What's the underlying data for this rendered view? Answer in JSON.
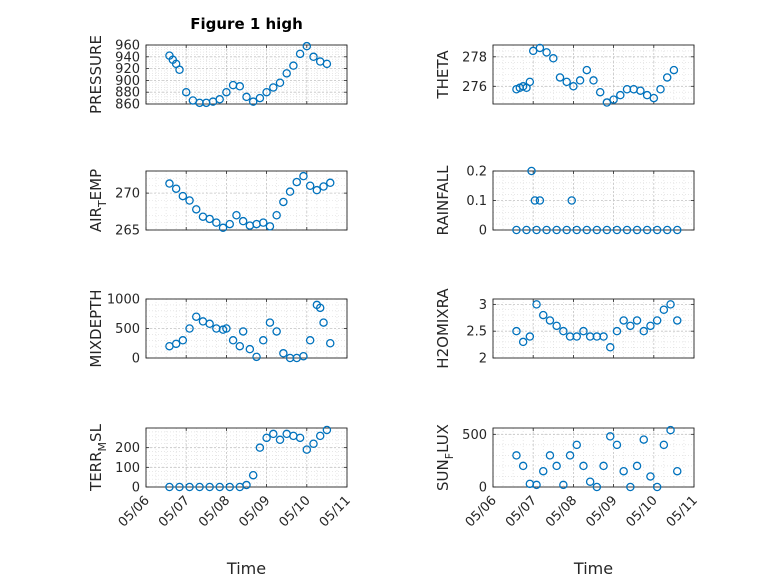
{
  "chart_data": {
    "title": "Figure 1 high",
    "marker": "open-circle",
    "color": "#0072BD",
    "grid": "major+minor",
    "panels": [
      {
        "ylabel": "PRESSURE",
        "ylabel_sub": "",
        "ylabel_tail": "",
        "ylim": [
          860,
          960
        ],
        "yticks": [
          "860",
          "880",
          "900",
          "920",
          "940",
          "960"
        ],
        "x": [
          "05/06 14:00",
          "05/06 16:00",
          "05/06 18:00",
          "05/06 20:00",
          "05/07 00:00",
          "05/07 04:00",
          "05/07 08:00",
          "05/07 12:00",
          "05/07 16:00",
          "05/07 20:00",
          "05/08 00:00",
          "05/08 04:00",
          "05/08 08:00",
          "05/08 12:00",
          "05/08 16:00",
          "05/08 20:00",
          "05/09 00:00",
          "05/09 04:00",
          "05/09 08:00",
          "05/09 12:00",
          "05/09 16:00",
          "05/09 20:00",
          "05/10 00:00",
          "05/10 04:00",
          "05/10 08:00",
          "05/10 12:00"
        ],
        "y": [
          942,
          935,
          928,
          918,
          880,
          866,
          862,
          862,
          864,
          868,
          880,
          892,
          890,
          872,
          864,
          870,
          880,
          888,
          896,
          912,
          925,
          945,
          958,
          940,
          932,
          928
        ]
      },
      {
        "ylabel": "THETA",
        "ylabel_sub": "",
        "ylabel_tail": "",
        "ylim": [
          274.8,
          278.8
        ],
        "yticks": [
          "276",
          "278"
        ],
        "x": [
          "05/06 14:00",
          "05/06 16:00",
          "05/06 18:00",
          "05/06 20:00",
          "05/06 22:00",
          "05/07 00:00",
          "05/07 04:00",
          "05/07 08:00",
          "05/07 12:00",
          "05/07 16:00",
          "05/07 20:00",
          "05/08 00:00",
          "05/08 04:00",
          "05/08 08:00",
          "05/08 12:00",
          "05/08 16:00",
          "05/08 20:00",
          "05/09 00:00",
          "05/09 04:00",
          "05/09 08:00",
          "05/09 12:00",
          "05/09 16:00",
          "05/09 20:00",
          "05/10 00:00",
          "05/10 04:00",
          "05/10 08:00",
          "05/10 12:00"
        ],
        "y": [
          275.8,
          275.9,
          276.0,
          275.9,
          276.3,
          278.4,
          278.6,
          278.3,
          277.9,
          276.6,
          276.3,
          276.0,
          276.4,
          277.1,
          276.4,
          275.6,
          274.9,
          275.1,
          275.4,
          275.8,
          275.8,
          275.7,
          275.4,
          275.2,
          275.8,
          276.6,
          277.1
        ]
      },
      {
        "ylabel": "AIR",
        "ylabel_sub": "T",
        "ylabel_tail": "EMP",
        "ylim": [
          265,
          273
        ],
        "yticks": [
          "265",
          "270"
        ],
        "x": [
          "05/06 14:00",
          "05/06 18:00",
          "05/06 22:00",
          "05/07 02:00",
          "05/07 06:00",
          "05/07 10:00",
          "05/07 14:00",
          "05/07 18:00",
          "05/07 22:00",
          "05/08 02:00",
          "05/08 06:00",
          "05/08 10:00",
          "05/08 14:00",
          "05/08 18:00",
          "05/08 22:00",
          "05/09 02:00",
          "05/09 06:00",
          "05/09 10:00",
          "05/09 14:00",
          "05/09 18:00",
          "05/09 22:00",
          "05/10 02:00",
          "05/10 06:00",
          "05/10 10:00",
          "05/10 14:00"
        ],
        "y": [
          271.3,
          270.6,
          269.6,
          269.0,
          267.8,
          266.8,
          266.5,
          266.0,
          265.3,
          265.8,
          267.0,
          266.2,
          265.6,
          265.8,
          266.0,
          265.5,
          267.0,
          268.8,
          270.2,
          271.5,
          272.3,
          271.0,
          270.4,
          270.9,
          271.4
        ]
      },
      {
        "ylabel": "RAINFALL",
        "ylabel_sub": "",
        "ylabel_tail": "",
        "ylim": [
          0,
          0.2
        ],
        "yticks": [
          "0",
          "0.1",
          "0.2"
        ],
        "x": [
          "05/06 14:00",
          "05/06 20:00",
          "05/07 02:00",
          "05/07 08:00",
          "05/07 14:00",
          "05/07 20:00",
          "05/08 02:00",
          "05/08 08:00",
          "05/08 14:00",
          "05/08 20:00",
          "05/09 02:00",
          "05/09 08:00",
          "05/09 14:00",
          "05/09 20:00",
          "05/10 02:00",
          "05/10 08:00",
          "05/10 14:00",
          "05/06 23:00",
          "05/07 01:00",
          "05/07 04:00",
          "05/07 23:00"
        ],
        "y": [
          0,
          0,
          0,
          0,
          0,
          0,
          0,
          0,
          0,
          0,
          0,
          0,
          0,
          0,
          0,
          0,
          0,
          0.2,
          0.1,
          0.1,
          0.1
        ]
      },
      {
        "ylabel": "MIXDEPTH",
        "ylabel_sub": "",
        "ylabel_tail": "",
        "ylim": [
          0,
          1000
        ],
        "yticks": [
          "0",
          "500",
          "1000"
        ],
        "x": [
          "05/06 14:00",
          "05/06 18:00",
          "05/06 22:00",
          "05/07 02:00",
          "05/07 06:00",
          "05/07 10:00",
          "05/07 14:00",
          "05/07 18:00",
          "05/07 22:00",
          "05/08 00:00",
          "05/08 04:00",
          "05/08 08:00",
          "05/08 10:00",
          "05/08 14:00",
          "05/08 18:00",
          "05/08 22:00",
          "05/09 02:00",
          "05/09 06:00",
          "05/09 10:00",
          "05/09 14:00",
          "05/09 18:00",
          "05/09 22:00",
          "05/10 02:00",
          "05/10 06:00",
          "05/10 08:00",
          "05/10 10:00",
          "05/10 14:00"
        ],
        "y": [
          200,
          240,
          300,
          500,
          700,
          620,
          580,
          500,
          480,
          500,
          300,
          200,
          450,
          150,
          20,
          300,
          600,
          450,
          80,
          0,
          0,
          30,
          300,
          900,
          850,
          600,
          250
        ]
      },
      {
        "ylabel": "H2OMIXRA",
        "ylabel_sub": "",
        "ylabel_tail": "",
        "ylim": [
          2,
          3.1
        ],
        "yticks": [
          "2",
          "2.5",
          "3"
        ],
        "x": [
          "05/06 14:00",
          "05/06 18:00",
          "05/06 22:00",
          "05/07 02:00",
          "05/07 06:00",
          "05/07 10:00",
          "05/07 14:00",
          "05/07 18:00",
          "05/07 22:00",
          "05/08 02:00",
          "05/08 06:00",
          "05/08 10:00",
          "05/08 14:00",
          "05/08 18:00",
          "05/08 22:00",
          "05/09 02:00",
          "05/09 06:00",
          "05/09 10:00",
          "05/09 14:00",
          "05/09 18:00",
          "05/09 22:00",
          "05/10 02:00",
          "05/10 06:00",
          "05/10 10:00",
          "05/10 14:00"
        ],
        "y": [
          2.5,
          2.3,
          2.4,
          3.0,
          2.8,
          2.7,
          2.6,
          2.5,
          2.4,
          2.4,
          2.5,
          2.4,
          2.4,
          2.4,
          2.2,
          2.5,
          2.7,
          2.6,
          2.7,
          2.5,
          2.6,
          2.7,
          2.9,
          3.0,
          2.7
        ]
      },
      {
        "ylabel": "TERR",
        "ylabel_sub": "M",
        "ylabel_tail": "SL",
        "ylim": [
          0,
          300
        ],
        "yticks": [
          "0",
          "100",
          "200"
        ],
        "x": [
          "05/06 14:00",
          "05/06 20:00",
          "05/07 02:00",
          "05/07 08:00",
          "05/07 14:00",
          "05/07 20:00",
          "05/08 02:00",
          "05/08 08:00",
          "05/08 12:00",
          "05/08 16:00",
          "05/08 20:00",
          "05/09 00:00",
          "05/09 04:00",
          "05/09 08:00",
          "05/09 12:00",
          "05/09 16:00",
          "05/09 20:00",
          "05/10 00:00",
          "05/10 04:00",
          "05/10 08:00",
          "05/10 12:00"
        ],
        "y": [
          0,
          0,
          0,
          0,
          0,
          0,
          0,
          0,
          10,
          60,
          200,
          250,
          270,
          240,
          270,
          260,
          250,
          190,
          220,
          260,
          290
        ]
      },
      {
        "ylabel": "SUN",
        "ylabel_sub": "F",
        "ylabel_tail": "LUX",
        "ylim": [
          0,
          560
        ],
        "yticks": [
          "0",
          "500"
        ],
        "x": [
          "05/06 14:00",
          "05/06 18:00",
          "05/06 22:00",
          "05/07 02:00",
          "05/07 06:00",
          "05/07 10:00",
          "05/07 14:00",
          "05/07 18:00",
          "05/07 22:00",
          "05/08 02:00",
          "05/08 06:00",
          "05/08 10:00",
          "05/08 14:00",
          "05/08 18:00",
          "05/08 22:00",
          "05/09 02:00",
          "05/09 06:00",
          "05/09 10:00",
          "05/09 14:00",
          "05/09 18:00",
          "05/09 22:00",
          "05/10 02:00",
          "05/10 06:00",
          "05/10 10:00",
          "05/10 14:00"
        ],
        "y": [
          300,
          200,
          30,
          20,
          150,
          300,
          200,
          20,
          300,
          400,
          200,
          50,
          0,
          200,
          480,
          400,
          150,
          0,
          200,
          450,
          100,
          0,
          400,
          540,
          150
        ]
      }
    ],
    "xticks": [
      "05/06",
      "05/07",
      "05/08",
      "05/09",
      "05/10",
      "05/11"
    ],
    "xtick_panels": [
      6,
      7
    ],
    "xlabel": "Time"
  }
}
